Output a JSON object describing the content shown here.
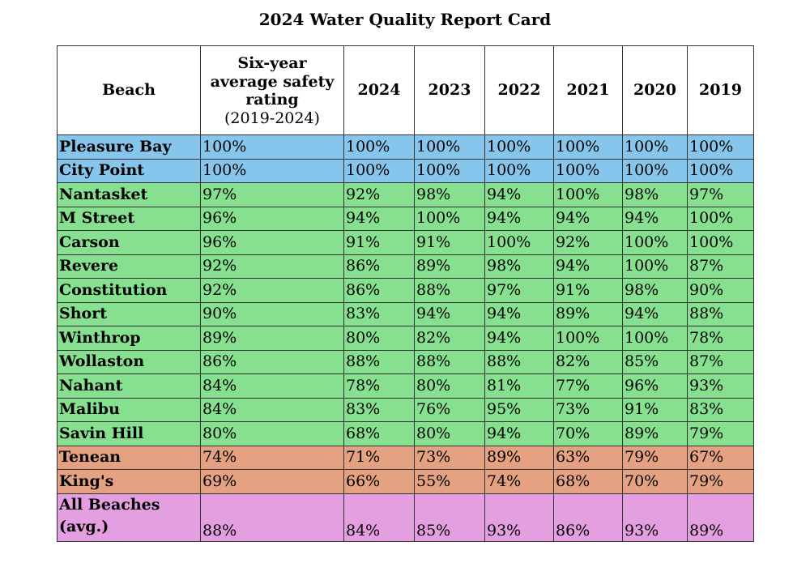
{
  "title": "2024 Water Quality Report Card",
  "colors": {
    "blue": "#87c6ec",
    "green": "#87e08f",
    "orange": "#e5a283",
    "purple": "#e39fe0",
    "header": "#ffffff",
    "border": "#333333"
  },
  "headers": {
    "beach": "Beach",
    "avg_main": "Six-year average safety rating",
    "avg_sub": "(2019-2024)",
    "years": [
      "2024",
      "2023",
      "2022",
      "2021",
      "2020",
      "2019"
    ]
  },
  "rows": [
    {
      "beach": "Pleasure Bay",
      "avg": "100%",
      "values": [
        "100%",
        "100%",
        "100%",
        "100%",
        "100%",
        "100%"
      ],
      "color": "blue"
    },
    {
      "beach": "City Point",
      "avg": "100%",
      "values": [
        "100%",
        "100%",
        "100%",
        "100%",
        "100%",
        "100%"
      ],
      "color": "blue"
    },
    {
      "beach": "Nantasket",
      "avg": "97%",
      "values": [
        "92%",
        "98%",
        "94%",
        "100%",
        "98%",
        "97%"
      ],
      "color": "green"
    },
    {
      "beach": "M Street",
      "avg": "96%",
      "values": [
        "94%",
        "100%",
        "94%",
        "94%",
        "94%",
        "100%"
      ],
      "color": "green"
    },
    {
      "beach": "Carson",
      "avg": "96%",
      "values": [
        "91%",
        "91%",
        "100%",
        "92%",
        "100%",
        "100%"
      ],
      "color": "green"
    },
    {
      "beach": "Revere",
      "avg": "92%",
      "values": [
        "86%",
        "89%",
        "98%",
        "94%",
        "100%",
        "87%"
      ],
      "color": "green"
    },
    {
      "beach": "Constitution",
      "avg": "92%",
      "values": [
        "86%",
        "88%",
        "97%",
        "91%",
        "98%",
        "90%"
      ],
      "color": "green"
    },
    {
      "beach": "Short",
      "avg": "90%",
      "values": [
        "83%",
        "94%",
        "94%",
        "89%",
        "94%",
        "88%"
      ],
      "color": "green"
    },
    {
      "beach": "Winthrop",
      "avg": "89%",
      "values": [
        "80%",
        "82%",
        "94%",
        "100%",
        "100%",
        "78%"
      ],
      "color": "green"
    },
    {
      "beach": "Wollaston",
      "avg": "86%",
      "values": [
        "88%",
        "88%",
        "88%",
        "82%",
        "85%",
        "87%"
      ],
      "color": "green"
    },
    {
      "beach": "Nahant",
      "avg": "84%",
      "values": [
        "78%",
        "80%",
        "81%",
        "77%",
        "96%",
        "93%"
      ],
      "color": "green"
    },
    {
      "beach": "Malibu",
      "avg": "84%",
      "values": [
        "83%",
        "76%",
        "95%",
        "73%",
        "91%",
        "83%"
      ],
      "color": "green"
    },
    {
      "beach": "Savin Hill",
      "avg": "80%",
      "values": [
        "68%",
        "80%",
        "94%",
        "70%",
        "89%",
        "79%"
      ],
      "color": "green"
    },
    {
      "beach": "Tenean",
      "avg": "74%",
      "values": [
        "71%",
        "73%",
        "89%",
        "63%",
        "79%",
        "67%"
      ],
      "color": "orange"
    },
    {
      "beach": "King's",
      "avg": "69%",
      "values": [
        "66%",
        "55%",
        "74%",
        "68%",
        "70%",
        "79%"
      ],
      "color": "orange"
    }
  ],
  "total": {
    "beach": "All Beaches (avg.)",
    "avg": "88%",
    "values": [
      "84%",
      "85%",
      "93%",
      "86%",
      "93%",
      "89%"
    ],
    "color": "purple"
  }
}
